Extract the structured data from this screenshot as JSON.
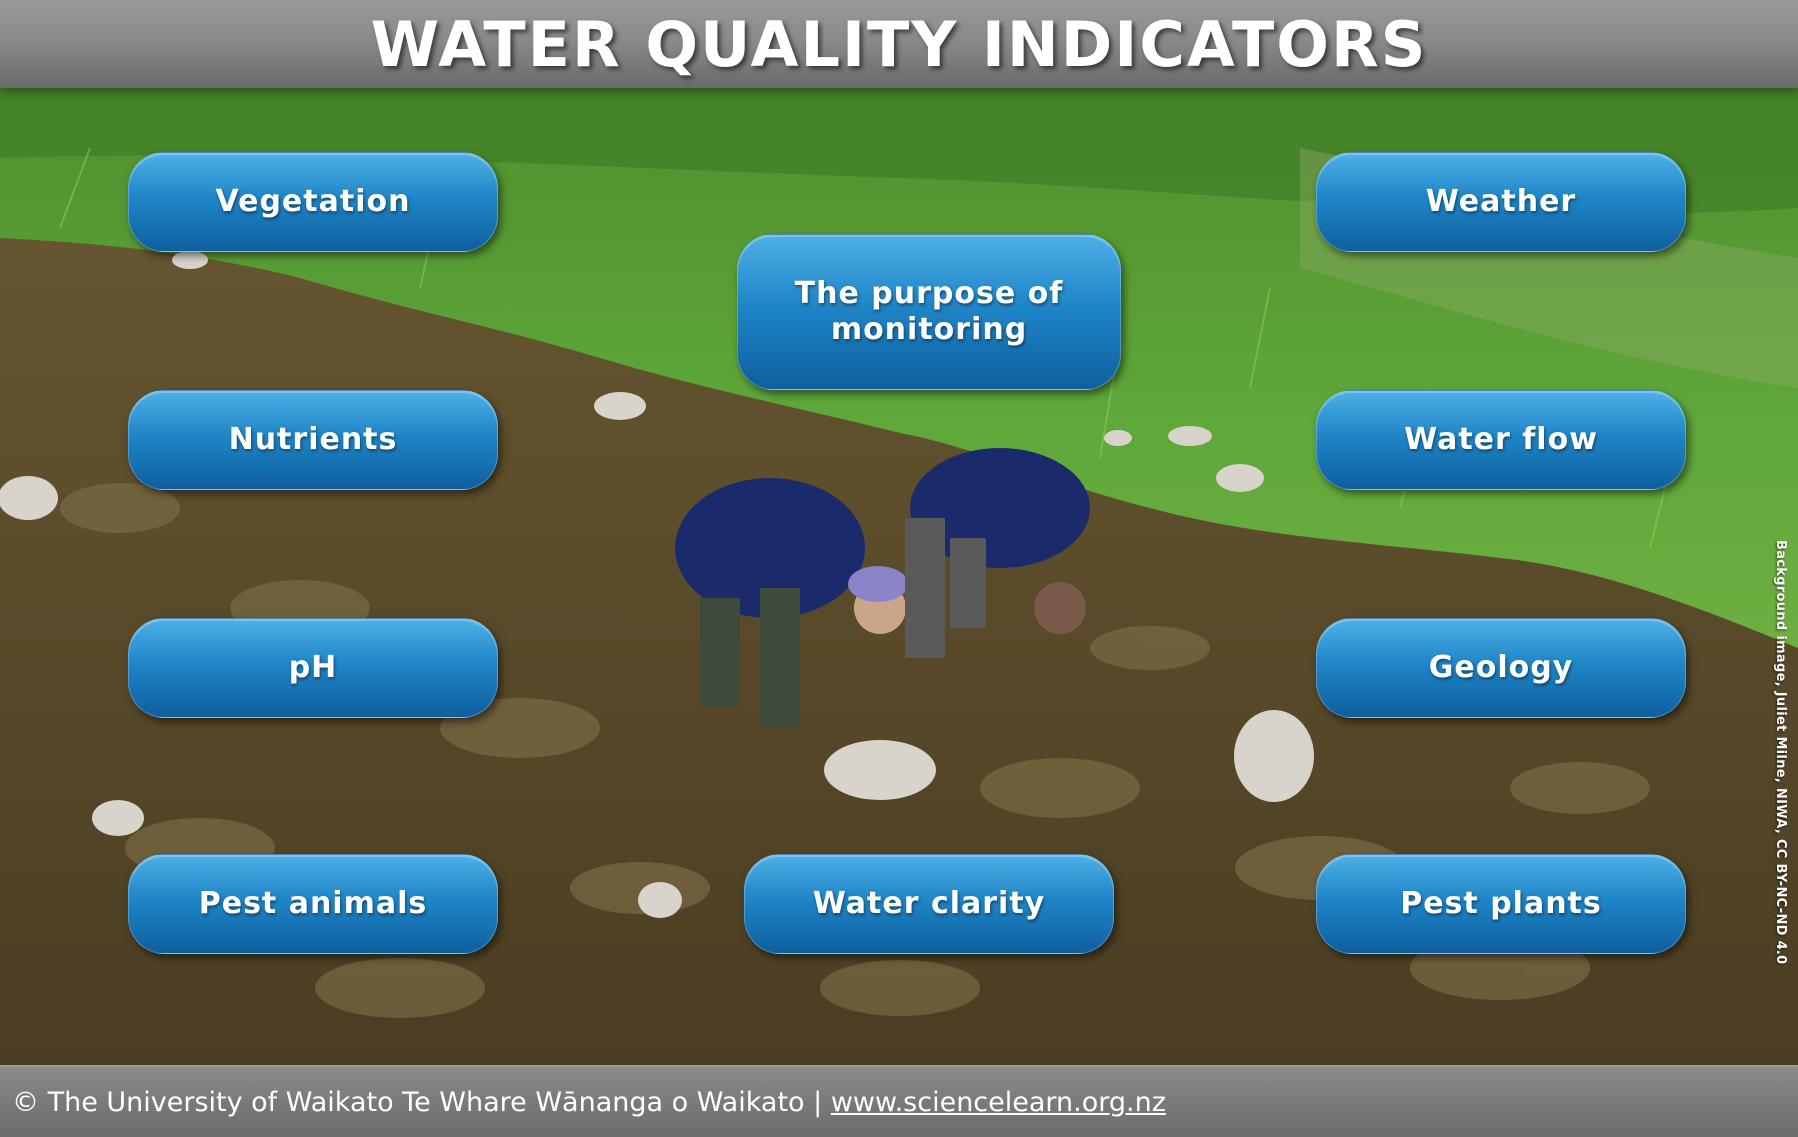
{
  "header": {
    "title": "WATER QUALITY INDICATORS"
  },
  "buttons": {
    "vegetation": "Vegetation",
    "weather": "Weather",
    "purpose_line1": "The purpose of",
    "purpose_line2": "monitoring",
    "nutrients": "Nutrients",
    "water_flow": "Water flow",
    "ph": "pH",
    "geology": "Geology",
    "pest_animals": "Pest animals",
    "water_clarity": "Water clarity",
    "pest_plants": "Pest plants"
  },
  "image_credit": "Background image, Juliet Milne, NIWA, CC BY-NC-ND 4.0",
  "footer": {
    "copyright": "© The University of Waikato Te Whare Wānanga o Waikato | ",
    "link_text": "www.sciencelearn.org.nz"
  },
  "colors": {
    "button_top": "#4fb0e6",
    "button_bottom": "#0f5f9e",
    "header_bar": "#8a8a8a",
    "grass": "#5a9a3a",
    "stream": "#5c4c2a"
  }
}
